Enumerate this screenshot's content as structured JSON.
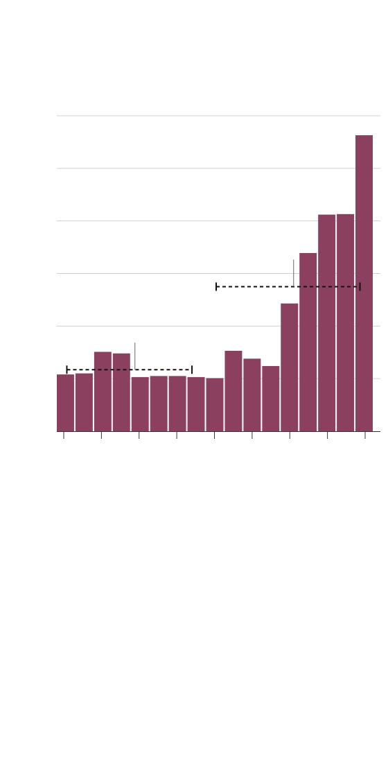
{
  "chart_data": {
    "type": "bar",
    "title": "",
    "xlabel": "",
    "ylabel": "",
    "ylim": [
      0,
      6
    ],
    "y_gridlines": [
      1,
      2,
      3,
      4,
      5,
      6
    ],
    "grid": true,
    "x_ticks": 9,
    "values": [
      1.08,
      1.1,
      1.51,
      1.48,
      1.03,
      1.05,
      1.05,
      1.03,
      1.01,
      1.53,
      1.38,
      1.24,
      2.43,
      3.39,
      4.12,
      4.13,
      5.63
    ],
    "bar_color": "#8b4060",
    "reference_ranges": [
      {
        "start_bar": 0,
        "end_bar": 7,
        "value": 1.17,
        "style": "dashed"
      },
      {
        "start_bar": 8,
        "end_bar": 16,
        "value": 2.75,
        "style": "dashed"
      }
    ]
  }
}
